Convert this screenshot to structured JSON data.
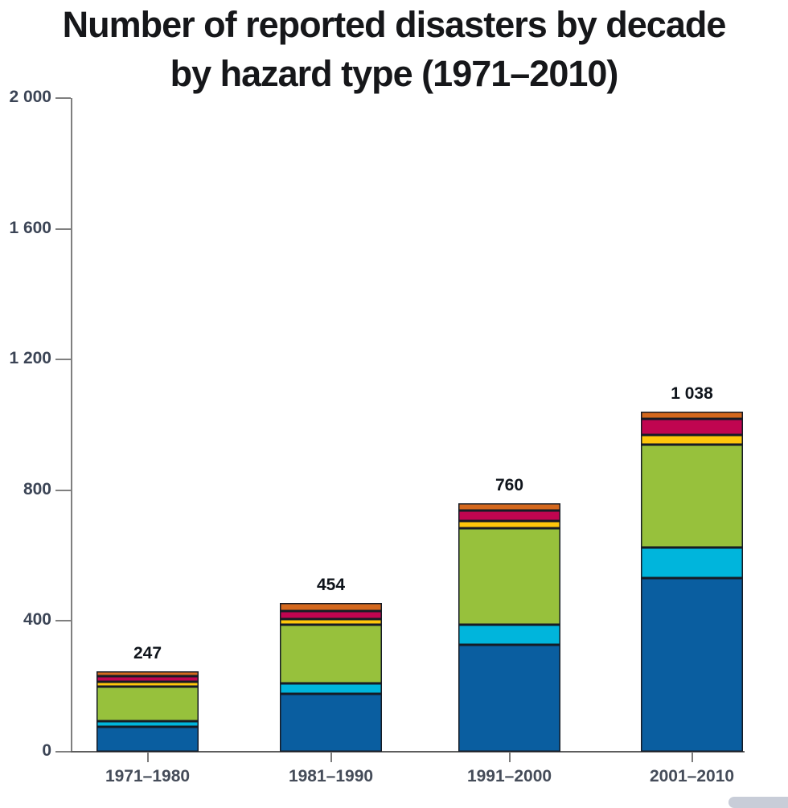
{
  "title": {
    "line1": "Number of reported disasters by decade",
    "line2": "by hazard type (1971–2010)"
  },
  "chart_data": {
    "type": "bar",
    "stacked": true,
    "title": "Number of reported disasters by decade by hazard type (1971–2010)",
    "xlabel": "",
    "ylabel": "",
    "ylim": [
      0,
      2000
    ],
    "grid": false,
    "legend": "none",
    "categories": [
      "1971–1980",
      "1981–1990",
      "1991–2000",
      "2001–2010"
    ],
    "totals": [
      "247",
      "454",
      "760",
      "1 038"
    ],
    "yticks": [
      "0",
      "400",
      "800",
      "1 200",
      "1 600",
      "2 000"
    ],
    "series": [
      {
        "name": "dark-blue-segment",
        "color": "#0a5ea0",
        "values": [
          77,
          176,
          327,
          531
        ]
      },
      {
        "name": "cyan-segment",
        "color": "#00b5dc",
        "values": [
          18,
          32,
          62,
          93
        ]
      },
      {
        "name": "green-segment",
        "color": "#97c13c",
        "values": [
          106,
          180,
          295,
          314
        ]
      },
      {
        "name": "yellow-segment",
        "color": "#ffc60b",
        "values": [
          15,
          16,
          22,
          30
        ]
      },
      {
        "name": "crimson-segment",
        "color": "#c00550",
        "values": [
          16,
          25,
          32,
          49
        ]
      },
      {
        "name": "orange-segment",
        "color": "#d4681e",
        "values": [
          15,
          25,
          22,
          21
        ]
      }
    ],
    "colors": {
      "axis": "#7f7f7f",
      "baseline": "#5d5d5d",
      "bar_outline": "#161b25",
      "title_text": "#16171a",
      "tick_label_text": "#3b4455"
    }
  }
}
